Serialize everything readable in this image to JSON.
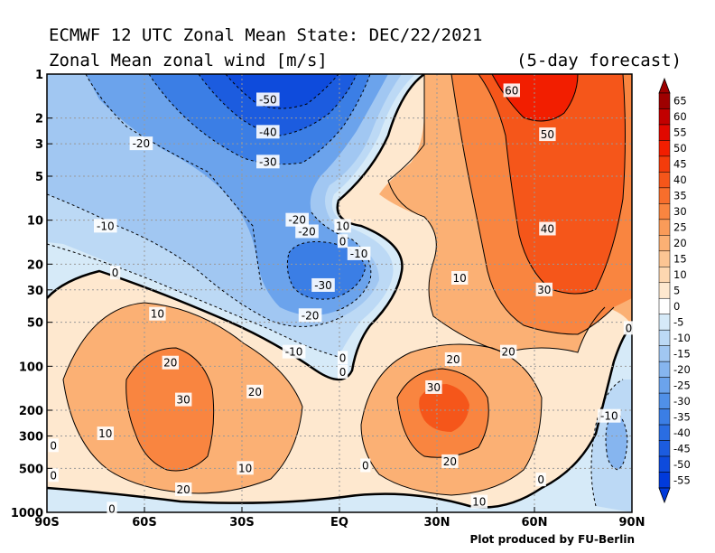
{
  "title_line1": "ECMWF 12 UTC Zonal Mean State: DEC/22/2021",
  "title_line2": "Zonal Mean zonal wind [m/s]",
  "forecast_note": "(5-day forecast)",
  "credit": "Plot produced by FU-Berlin",
  "chart_data": {
    "type": "heatmap",
    "x_ticks": [
      "90S",
      "60S",
      "30S",
      "EQ",
      "30N",
      "60N",
      "90N"
    ],
    "y_ticks": [
      "1",
      "2",
      "3",
      "5",
      "10",
      "20",
      "30",
      "50",
      "100",
      "200",
      "300",
      "500",
      "1000"
    ],
    "y_scale": "log",
    "grid": true,
    "colorbar": {
      "labels": [
        "65",
        "60",
        "55",
        "50",
        "45",
        "40",
        "35",
        "30",
        "25",
        "20",
        "15",
        "10",
        "5",
        "0",
        "-5",
        "-10",
        "-15",
        "-20",
        "-25",
        "-30",
        "-35",
        "-40",
        "-45",
        "-50",
        "-55"
      ],
      "colors": [
        "#9e0000",
        "#c20000",
        "#e10800",
        "#f21e00",
        "#f43c0b",
        "#f5561a",
        "#f86e2c",
        "#f98540",
        "#fa9b59",
        "#fbb074",
        "#fcc593",
        "#fdd7b0",
        "#fee8cf",
        "#ffffff",
        "#d6eaf8",
        "#bcd9f5",
        "#a1c7f2",
        "#86b5ef",
        "#6ba3ec",
        "#5090e8",
        "#3b7ee5",
        "#2a6de2",
        "#1c5cdf",
        "#0e4bdc",
        "#003adb"
      ],
      "placement": "right"
    },
    "contour_labels": [
      {
        "text": "-50",
        "lat": -22,
        "p": 1.5
      },
      {
        "text": "-40",
        "lat": -22,
        "p": 2.5
      },
      {
        "text": "-30",
        "lat": -22,
        "p": 4.0
      },
      {
        "text": "-20",
        "lat": -61,
        "p": 3.0
      },
      {
        "text": "-20",
        "lat": -13,
        "p": 10.0
      },
      {
        "text": "-20",
        "lat": -10,
        "p": 12.0
      },
      {
        "text": "-10",
        "lat": -72,
        "p": 11.0
      },
      {
        "text": "-10",
        "lat": 6,
        "p": 17.0
      },
      {
        "text": "-10",
        "lat": -14,
        "p": 80.0
      },
      {
        "text": "-10",
        "lat": 83,
        "p": 220.0
      },
      {
        "text": "-30",
        "lat": -5,
        "p": 28.0
      },
      {
        "text": "-20",
        "lat": -9,
        "p": 45.0
      },
      {
        "text": "0",
        "lat": -69,
        "p": 23.0
      },
      {
        "text": "0",
        "lat": 1,
        "p": 14.0
      },
      {
        "text": "0",
        "lat": 1,
        "p": 88.0
      },
      {
        "text": "0",
        "lat": 1,
        "p": 110.0
      },
      {
        "text": "0",
        "lat": 89,
        "p": 55.0
      },
      {
        "text": "0",
        "lat": 8,
        "p": 480.0
      },
      {
        "text": "0",
        "lat": 62,
        "p": 600.0
      },
      {
        "text": "0",
        "lat": -88,
        "p": 350.0
      },
      {
        "text": "0",
        "lat": -88,
        "p": 560.0
      },
      {
        "text": "0",
        "lat": -70,
        "p": 950.0
      },
      {
        "text": "10",
        "lat": 1,
        "p": 11.0
      },
      {
        "text": "10",
        "lat": 37,
        "p": 25.0
      },
      {
        "text": "10",
        "lat": -56,
        "p": 44.0
      },
      {
        "text": "10",
        "lat": -72,
        "p": 290.0
      },
      {
        "text": "10",
        "lat": -29,
        "p": 500.0
      },
      {
        "text": "10",
        "lat": 43,
        "p": 850.0
      },
      {
        "text": "20",
        "lat": -52,
        "p": 95.0
      },
      {
        "text": "20",
        "lat": -26,
        "p": 150.0
      },
      {
        "text": "20",
        "lat": 35,
        "p": 90.0
      },
      {
        "text": "20",
        "lat": 52,
        "p": 80.0
      },
      {
        "text": "20",
        "lat": -48,
        "p": 700.0
      },
      {
        "text": "20",
        "lat": 34,
        "p": 450.0
      },
      {
        "text": "30",
        "lat": -48,
        "p": 170.0
      },
      {
        "text": "30",
        "lat": 29,
        "p": 140.0
      },
      {
        "text": "30",
        "lat": 63,
        "p": 30.0
      },
      {
        "text": "40",
        "lat": 64,
        "p": 11.5
      },
      {
        "text": "50",
        "lat": 64,
        "p": 2.6
      },
      {
        "text": "60",
        "lat": 53,
        "p": 1.3
      }
    ]
  }
}
